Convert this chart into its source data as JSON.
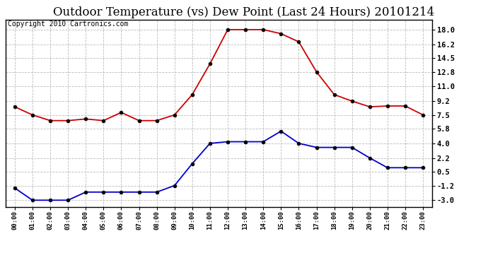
{
  "title": "Outdoor Temperature (vs) Dew Point (Last 24 Hours) 20101214",
  "copyright": "Copyright 2010 Cartronics.com",
  "hours": [
    "00:00",
    "01:00",
    "02:00",
    "03:00",
    "04:00",
    "05:00",
    "06:00",
    "07:00",
    "08:00",
    "09:00",
    "10:00",
    "11:00",
    "12:00",
    "13:00",
    "14:00",
    "15:00",
    "16:00",
    "17:00",
    "18:00",
    "19:00",
    "20:00",
    "21:00",
    "22:00",
    "23:00"
  ],
  "temp": [
    8.5,
    7.5,
    6.8,
    6.8,
    7.0,
    6.8,
    7.8,
    6.8,
    6.8,
    7.5,
    10.0,
    13.8,
    18.0,
    18.0,
    18.0,
    17.5,
    16.5,
    12.8,
    10.0,
    9.2,
    8.5,
    8.6,
    8.6,
    7.5
  ],
  "dew": [
    -1.5,
    -3.0,
    -3.0,
    -3.0,
    -2.0,
    -2.0,
    -2.0,
    -2.0,
    -2.0,
    -1.2,
    1.5,
    4.0,
    4.2,
    4.2,
    4.2,
    5.5,
    4.0,
    3.5,
    3.5,
    3.5,
    2.2,
    1.0,
    1.0,
    1.0
  ],
  "temp_color": "#cc0000",
  "dew_color": "#0000cc",
  "background_color": "#ffffff",
  "plot_background": "#ffffff",
  "grid_color": "#bbbbbb",
  "yticks": [
    -3.0,
    -1.2,
    0.5,
    2.2,
    4.0,
    5.8,
    7.5,
    9.2,
    11.0,
    12.8,
    14.5,
    16.2,
    18.0
  ],
  "ylim": [
    -3.8,
    19.2
  ],
  "title_fontsize": 12,
  "copyright_fontsize": 7
}
